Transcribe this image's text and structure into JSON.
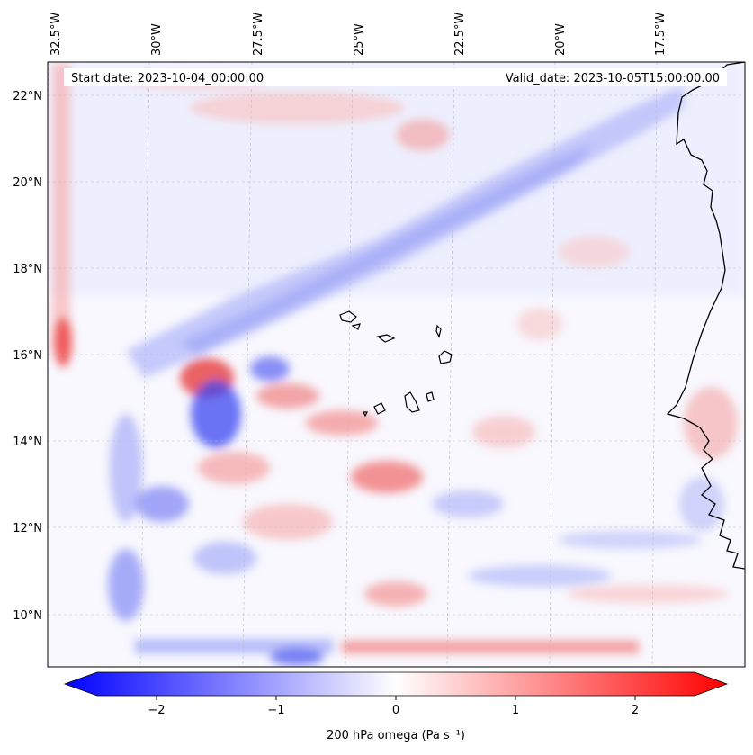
{
  "map": {
    "start_label": "Start date: 2023-10-04_00:00:00",
    "valid_label": "Valid_date: 2023-10-05T15:00:00.00",
    "lon_labels": [
      "32.5°W",
      "30°W",
      "27.5°W",
      "25°W",
      "22.5°W",
      "20°W",
      "17.5°W"
    ],
    "lat_labels": [
      "22°N",
      "20°N",
      "18°N",
      "16°N",
      "14°N",
      "12°N",
      "10°N"
    ],
    "field": "200 hPa omega",
    "units": "Pa s⁻¹",
    "gridlines": true,
    "colormap": "bwr",
    "colors": {
      "negative": "#0000ff",
      "zero": "#ffffff",
      "positive": "#ff0000",
      "coast": "#000000"
    }
  },
  "colorbar": {
    "label": "200 hPa omega (Pa s⁻¹)",
    "tick_labels": [
      "−2",
      "−1",
      "0",
      "1",
      "2"
    ],
    "range": [
      -2.5,
      2.5
    ],
    "extend": "both"
  }
}
